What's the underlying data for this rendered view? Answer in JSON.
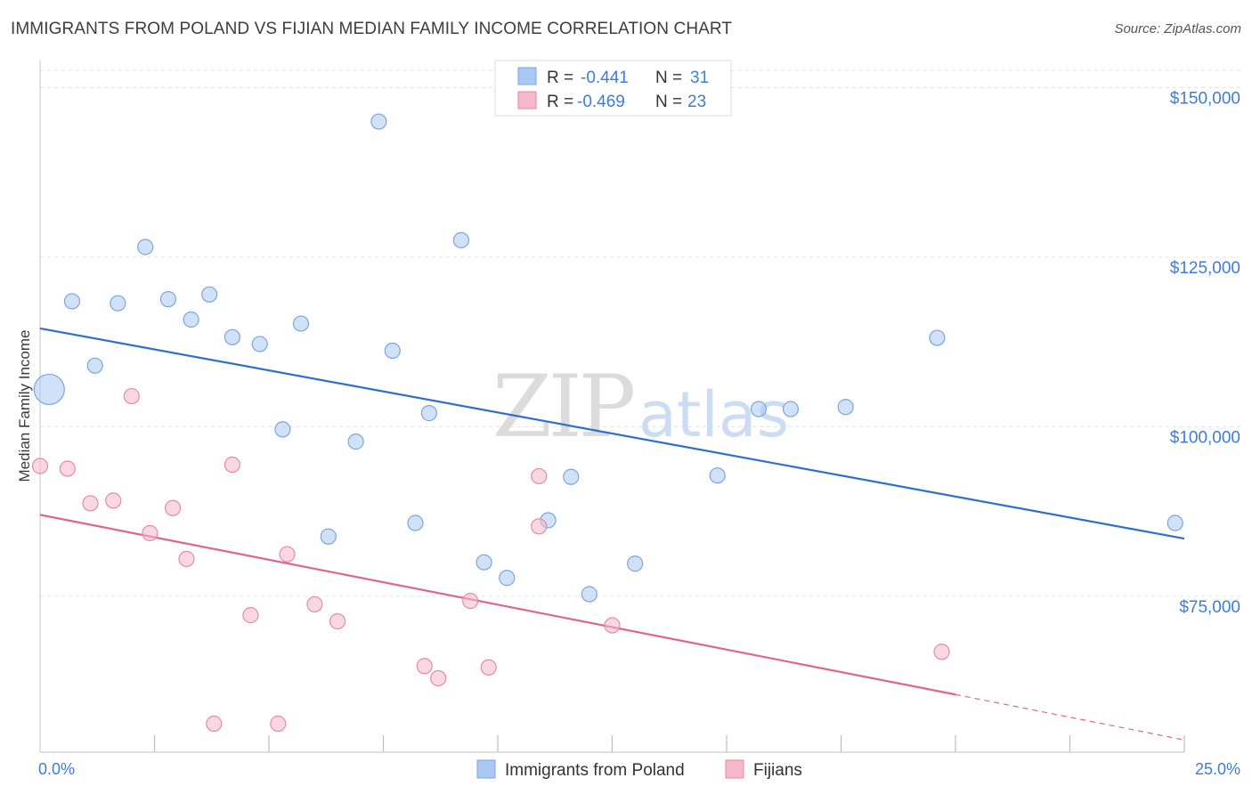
{
  "chart_data": {
    "type": "scatter",
    "title": "IMMIGRANTS FROM POLAND VS FIJIAN MEDIAN FAMILY INCOME CORRELATION CHART",
    "source": "Source: ZipAtlas.com",
    "xlabel": "",
    "ylabel": "Median Family Income",
    "xlim": [
      0,
      25
    ],
    "ylim": [
      52000,
      154000
    ],
    "x_tick_labels": [
      {
        "value": 0,
        "label": "0.0%"
      },
      {
        "value": 25,
        "label": "25.0%"
      }
    ],
    "y_ticks": [
      {
        "value": 75000,
        "label": "$75,000"
      },
      {
        "value": 100000,
        "label": "$100,000"
      },
      {
        "value": 125000,
        "label": "$125,000"
      },
      {
        "value": 150000,
        "label": "$150,000"
      }
    ],
    "grid": true,
    "watermark": {
      "zip": "ZIP",
      "atlas": "atlas"
    },
    "legend_stats": [
      {
        "r_label": "R =",
        "r_value": "-0.441",
        "n_label": "N =",
        "n_value": "31",
        "color": "#a9c8f2"
      },
      {
        "r_label": "R =",
        "r_value": "-0.469",
        "n_label": "N =",
        "n_value": "23",
        "color": "#f5b8cb"
      }
    ],
    "series": [
      {
        "name": "Immigrants from Poland",
        "color": "#a9c8f2",
        "stroke": "#7aa6de",
        "line_color": "#2e6fce",
        "trend": {
          "x0": 0,
          "y0": 114500,
          "x1": 25,
          "y1": 83500
        },
        "points": [
          {
            "x": 0.2,
            "y": 105500,
            "big": true
          },
          {
            "x": 0.7,
            "y": 118500
          },
          {
            "x": 1.2,
            "y": 109000
          },
          {
            "x": 1.7,
            "y": 118200
          },
          {
            "x": 2.3,
            "y": 126500
          },
          {
            "x": 2.8,
            "y": 118800
          },
          {
            "x": 3.3,
            "y": 115800
          },
          {
            "x": 3.7,
            "y": 119500
          },
          {
            "x": 4.2,
            "y": 113200
          },
          {
            "x": 4.8,
            "y": 112200
          },
          {
            "x": 5.3,
            "y": 99600
          },
          {
            "x": 5.7,
            "y": 115200
          },
          {
            "x": 6.3,
            "y": 83800
          },
          {
            "x": 6.9,
            "y": 97800
          },
          {
            "x": 7.4,
            "y": 145000
          },
          {
            "x": 7.7,
            "y": 111200
          },
          {
            "x": 8.2,
            "y": 85800
          },
          {
            "x": 8.5,
            "y": 102000
          },
          {
            "x": 9.2,
            "y": 127500
          },
          {
            "x": 9.7,
            "y": 80000
          },
          {
            "x": 10.2,
            "y": 77700
          },
          {
            "x": 11.1,
            "y": 86200
          },
          {
            "x": 11.6,
            "y": 92600
          },
          {
            "x": 12.0,
            "y": 75300
          },
          {
            "x": 13.0,
            "y": 79800
          },
          {
            "x": 14.8,
            "y": 92800
          },
          {
            "x": 15.7,
            "y": 102600
          },
          {
            "x": 16.4,
            "y": 102600
          },
          {
            "x": 17.6,
            "y": 102900
          },
          {
            "x": 19.6,
            "y": 113100
          },
          {
            "x": 24.8,
            "y": 85800
          }
        ]
      },
      {
        "name": "Fijians",
        "color": "#f5b8cb",
        "stroke": "#e68aa6",
        "line_color": "#e0648c",
        "trend": {
          "x0": 0,
          "y0": 87000,
          "x1": 20,
          "y1": 60500
        },
        "trend_dashed": {
          "x0": 20,
          "y0": 60500,
          "x1": 25,
          "y1": 53800
        },
        "points": [
          {
            "x": 0.0,
            "y": 94200
          },
          {
            "x": 0.6,
            "y": 93800
          },
          {
            "x": 1.1,
            "y": 88700
          },
          {
            "x": 1.6,
            "y": 89100
          },
          {
            "x": 2.0,
            "y": 104500
          },
          {
            "x": 2.4,
            "y": 84300
          },
          {
            "x": 2.9,
            "y": 88000
          },
          {
            "x": 3.2,
            "y": 80500
          },
          {
            "x": 3.8,
            "y": 56200
          },
          {
            "x": 4.2,
            "y": 94400
          },
          {
            "x": 4.6,
            "y": 72200
          },
          {
            "x": 5.2,
            "y": 56200
          },
          {
            "x": 5.4,
            "y": 81200
          },
          {
            "x": 6.0,
            "y": 73800
          },
          {
            "x": 6.5,
            "y": 71300
          },
          {
            "x": 8.4,
            "y": 64700
          },
          {
            "x": 8.7,
            "y": 62900
          },
          {
            "x": 9.4,
            "y": 74300
          },
          {
            "x": 9.8,
            "y": 64500
          },
          {
            "x": 10.9,
            "y": 92700
          },
          {
            "x": 10.9,
            "y": 85300
          },
          {
            "x": 12.5,
            "y": 70700
          },
          {
            "x": 19.7,
            "y": 66800
          }
        ]
      }
    ]
  }
}
